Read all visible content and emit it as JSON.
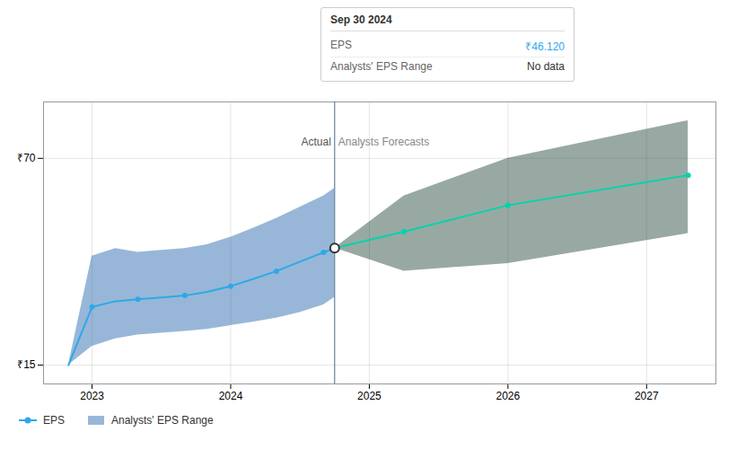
{
  "chart_data": {
    "type": "line",
    "xlim": [
      2022.65,
      2027.5
    ],
    "xticks": [
      2023,
      2024,
      2025,
      2026,
      2027
    ],
    "ylim": [
      10,
      85
    ],
    "yticks": [
      {
        "value": 15,
        "label": "₹15"
      },
      {
        "value": 70,
        "label": "₹70"
      }
    ],
    "grid": true,
    "legend": "bottom",
    "series": [
      {
        "name": "Analysts' EPS Range",
        "type": "area",
        "color": "#1a5fa8",
        "x": [
          2022.83,
          2023.0,
          2023.17,
          2023.33,
          2023.5,
          2023.67,
          2023.83,
          2024.0,
          2024.17,
          2024.33,
          2024.5,
          2024.67,
          2024.75
        ],
        "lower": [
          15.0,
          20.0,
          22.0,
          23.0,
          23.5,
          24.0,
          24.5,
          25.5,
          26.5,
          27.5,
          29.0,
          31.0,
          33.0
        ],
        "upper": [
          15.0,
          44.0,
          46.0,
          45.0,
          45.5,
          46.0,
          47.0,
          49.0,
          51.5,
          54.0,
          57.0,
          60.0,
          62.0
        ]
      },
      {
        "name": "Analysts' EPS Range",
        "type": "area",
        "color": "#1a4035",
        "x": [
          2024.75,
          2025.25,
          2026.0,
          2027.3
        ],
        "lower": [
          46.12,
          40.0,
          42.0,
          50.0
        ],
        "upper": [
          46.12,
          60.0,
          70.0,
          80.0
        ]
      },
      {
        "name": "EPS",
        "type": "line",
        "color": "#2ea8e8",
        "marker": "circle",
        "x": [
          2022.83,
          2023.0,
          2023.17,
          2023.33,
          2023.5,
          2023.67,
          2023.83,
          2024.0,
          2024.17,
          2024.33,
          2024.5,
          2024.67,
          2024.75
        ],
        "values": [
          15.0,
          30.5,
          32.0,
          32.5,
          33.0,
          33.5,
          34.5,
          36.0,
          38.0,
          40.0,
          42.5,
          45.0,
          46.12
        ],
        "marker_x": [
          2023.0,
          2023.33,
          2023.67,
          2024.0,
          2024.33,
          2024.67
        ],
        "marker_values": [
          30.5,
          32.5,
          33.5,
          36.0,
          40.0,
          45.0
        ]
      },
      {
        "name": "EPS",
        "type": "line",
        "color": "#00d4aa",
        "marker": "circle",
        "x": [
          2024.75,
          2025.25,
          2026.0,
          2027.3
        ],
        "values": [
          46.12,
          50.5,
          57.5,
          65.5
        ],
        "marker_x": [
          2025.25,
          2026.0,
          2027.3
        ],
        "marker_values": [
          50.5,
          57.5,
          65.5
        ]
      }
    ],
    "divider": {
      "x": 2024.75,
      "color": "#4a6888"
    },
    "highlight": {
      "x": 2024.75,
      "y": 46.12
    },
    "annotations": [
      {
        "text": "Actual",
        "x": 2024.75,
        "y": 73.5,
        "side": "left",
        "color": "#cccccc"
      },
      {
        "text": "Analysts Forecasts",
        "x": 2024.75,
        "y": 73.5,
        "side": "right",
        "color": "#888888"
      }
    ],
    "tooltip": {
      "title": "Sep 30 2024",
      "rows": [
        {
          "label": "EPS",
          "value": "₹46.120",
          "color": "#2ea8e8"
        },
        {
          "label": "Analysts' EPS Range",
          "value": "No data"
        }
      ]
    }
  }
}
